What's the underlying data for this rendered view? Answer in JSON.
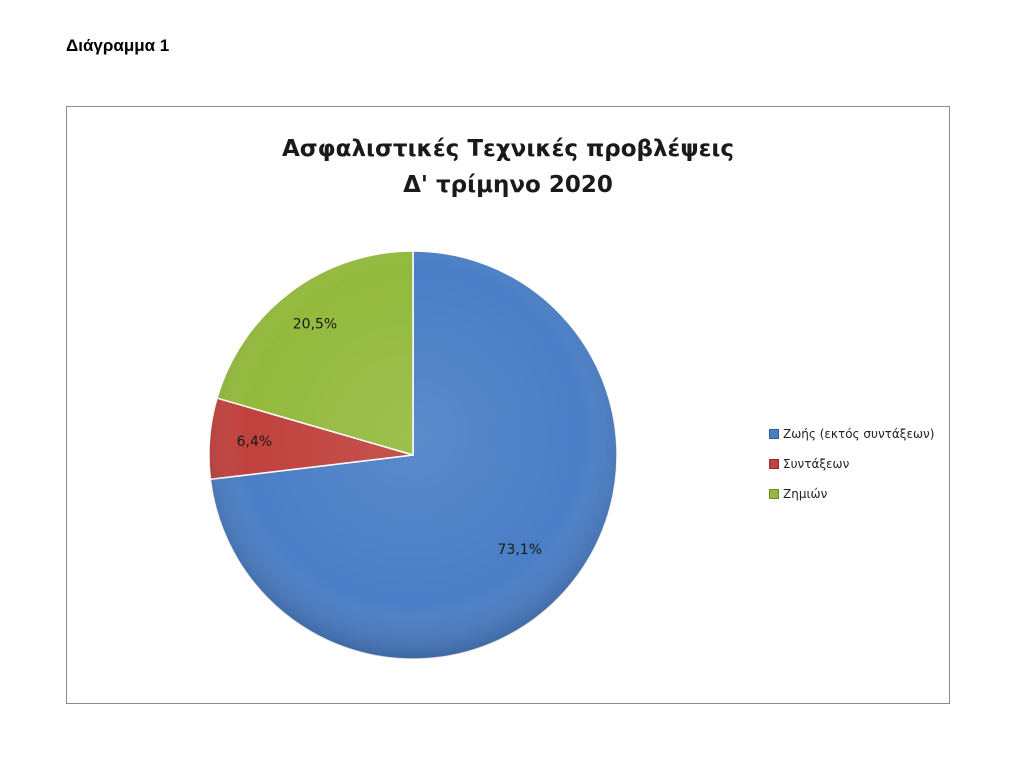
{
  "document": {
    "heading": "Διάγραμμα 1"
  },
  "chart_data": {
    "type": "pie",
    "title": "Ασφαλιστικές Τεχνικές προβλέψεις",
    "subtitle": "Δ' τρίμηνο 2020",
    "slices": [
      {
        "name": "Ζωής (εκτός συντάξεων)",
        "value": 73.1,
        "label": "73,1%",
        "color": "#4a7ec6"
      },
      {
        "name": "Συντάξεων",
        "value": 6.4,
        "label": "6,4%",
        "color": "#c0413d"
      },
      {
        "name": "Ζημιών",
        "value": 20.5,
        "label": "20,5%",
        "color": "#93b93c"
      }
    ],
    "start_angle_deg": 0,
    "direction": "clockwise",
    "legend_position": "right"
  }
}
